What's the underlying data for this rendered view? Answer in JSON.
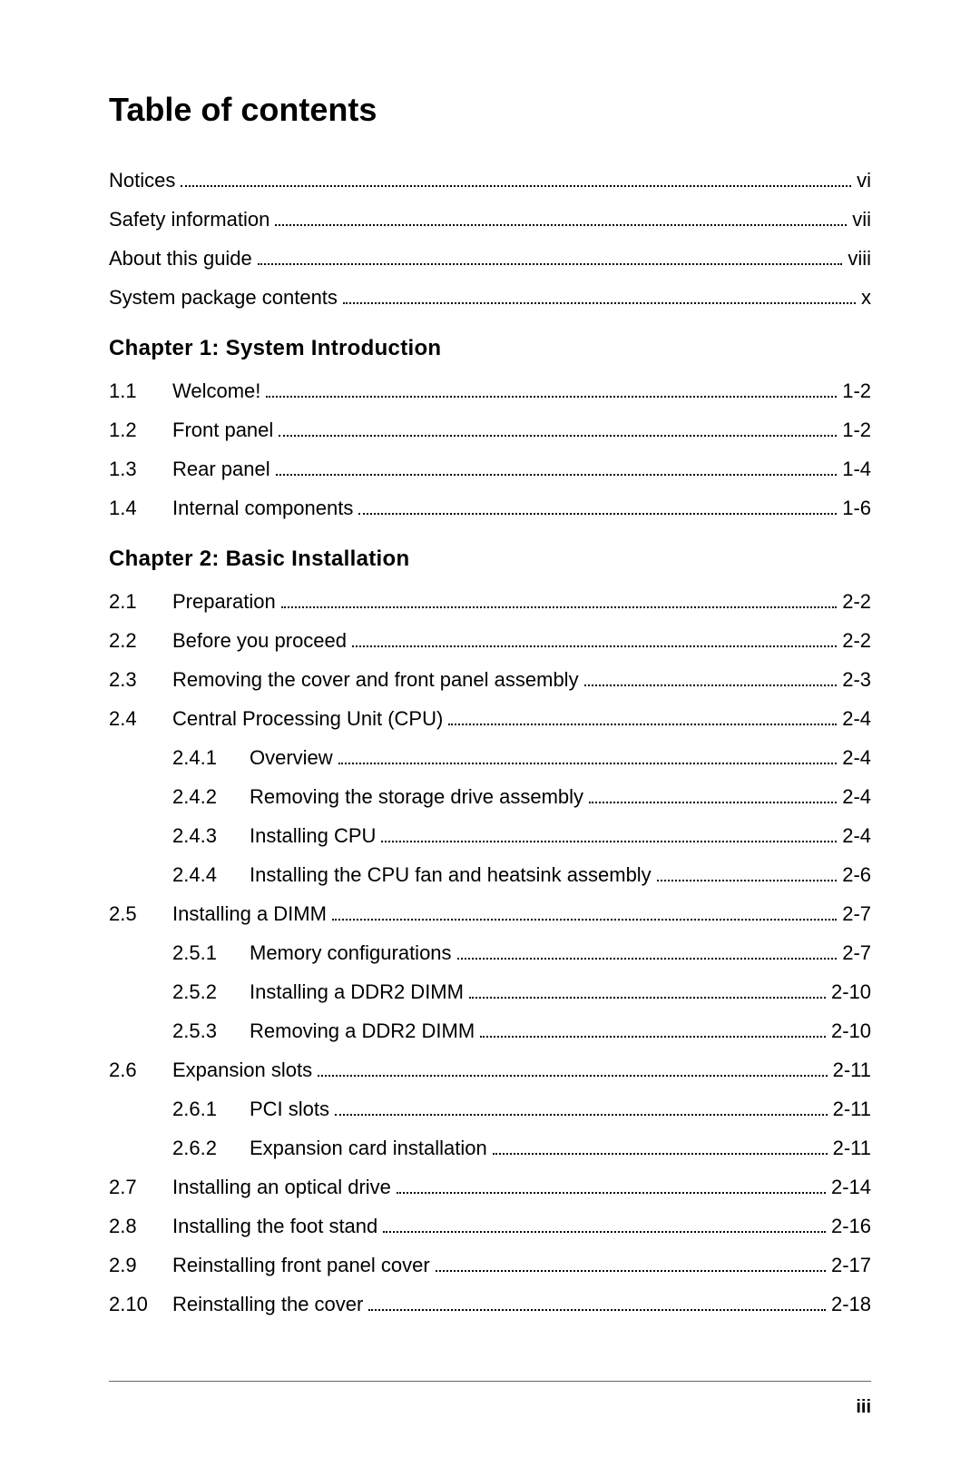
{
  "page": {
    "title": "Table of contents",
    "footer_page": "iii",
    "background_color": "#ffffff",
    "text_color": "#000000",
    "title_fontsize": 36,
    "body_fontsize": 22,
    "chapter_fontsize": 24,
    "rule_color": "#666666"
  },
  "front_matter": [
    {
      "label": "Notices",
      "page": "vi"
    },
    {
      "label": "Safety information",
      "page": "vii"
    },
    {
      "label": "About this guide",
      "page": "viii"
    },
    {
      "label": "System package contents",
      "page": "x"
    }
  ],
  "chapters": [
    {
      "heading": "Chapter 1: System Introduction",
      "entries": [
        {
          "num": "1.1",
          "label": "Welcome!",
          "page": "1-2",
          "sub": []
        },
        {
          "num": "1.2",
          "label": "Front panel",
          "page": "1-2",
          "sub": []
        },
        {
          "num": "1.3",
          "label": "Rear panel",
          "page": "1-4",
          "sub": []
        },
        {
          "num": "1.4",
          "label": "Internal components",
          "page": "1-6",
          "sub": []
        }
      ]
    },
    {
      "heading": "Chapter 2:  Basic Installation",
      "entries": [
        {
          "num": "2.1",
          "label": "Preparation",
          "page": "2-2",
          "sub": []
        },
        {
          "num": "2.2",
          "label": "Before you proceed",
          "page": "2-2",
          "sub": []
        },
        {
          "num": "2.3",
          "label": "Removing the cover and front panel assembly",
          "page": "2-3",
          "sub": []
        },
        {
          "num": "2.4",
          "label": "Central Processing Unit (CPU)",
          "page": "2-4",
          "sub": [
            {
              "num": "2.4.1",
              "label": "Overview",
              "page": "2-4"
            },
            {
              "num": "2.4.2",
              "label": "Removing the storage drive assembly",
              "page": "2-4"
            },
            {
              "num": "2.4.3",
              "label": "Installing CPU",
              "page": "2-4"
            },
            {
              "num": "2.4.4",
              "label": "Installing the CPU fan and heatsink assembly",
              "page": "2-6"
            }
          ]
        },
        {
          "num": "2.5",
          "label": "Installing a DIMM",
          "page": "2-7",
          "sub": [
            {
              "num": "2.5.1",
              "label": "Memory configurations",
              "page": "2-7"
            },
            {
              "num": "2.5.2",
              "label": "Installing a DDR2 DIMM",
              "page": "2-10"
            },
            {
              "num": "2.5.3",
              "label": "Removing a DDR2 DIMM",
              "page": "2-10"
            }
          ]
        },
        {
          "num": "2.6",
          "label": "Expansion slots",
          "page": "2-11",
          "sub": [
            {
              "num": "2.6.1",
              "label": "PCI slots",
              "page": "2-11"
            },
            {
              "num": "2.6.2",
              "label": "Expansion card installation",
              "page": "2-11"
            }
          ]
        },
        {
          "num": "2.7",
          "label": "Installing an optical drive",
          "page": "2-14",
          "sub": []
        },
        {
          "num": "2.8",
          "label": "Installing the foot stand",
          "page": "2-16",
          "sub": []
        },
        {
          "num": "2.9",
          "label": "Reinstalling front panel cover",
          "page": "2-17",
          "sub": []
        },
        {
          "num": "2.10",
          "label": "Reinstalling the cover",
          "page": "2-18",
          "sub": []
        }
      ]
    }
  ]
}
